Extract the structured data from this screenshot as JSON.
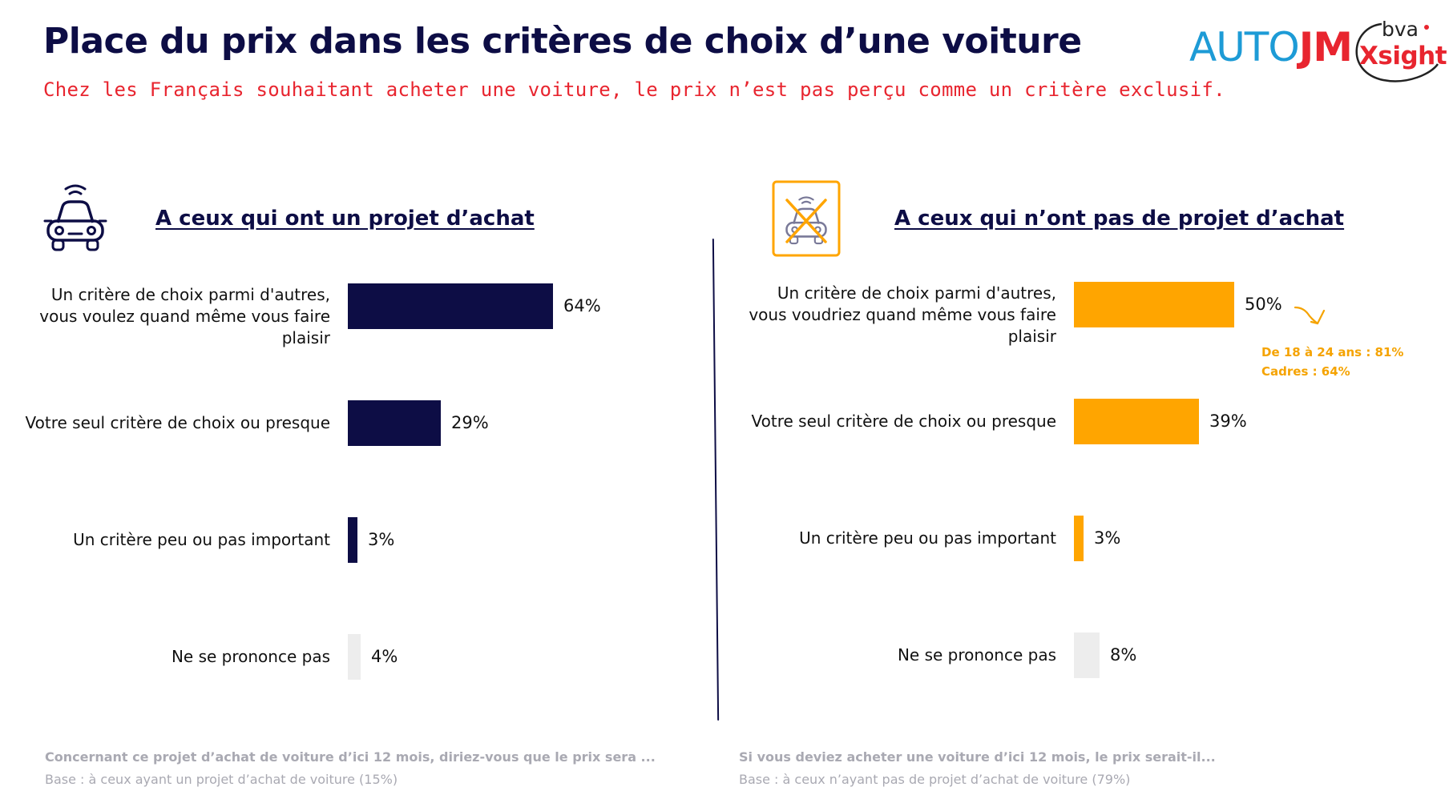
{
  "header": {
    "title": "Place du prix dans les critères de choix d’une voiture",
    "subtitle": "Chez les Français souhaitant acheter une voiture, le prix n’est pas perçu comme un critère exclusif."
  },
  "logos": {
    "autojm_a": "AUTO",
    "autojm_b": "JM",
    "bva": "bva",
    "xsight": "Xsight"
  },
  "colors": {
    "navy": "#0d0d45",
    "orange": "#ffa500",
    "grey_bar": "#ededed",
    "red": "#e8252f"
  },
  "chart_data": [
    {
      "type": "bar",
      "orientation": "horizontal",
      "panel_title": "A ceux qui ont un projet d’achat",
      "icon": "car-icon",
      "categories": [
        "Un critère de choix parmi d'autres, vous voulez quand même vous faire plaisir",
        "Votre seul critère de choix ou presque",
        "Un critère peu ou pas important",
        "Ne se prononce pas"
      ],
      "values": [
        64,
        29,
        3,
        4
      ],
      "value_labels": [
        "64%",
        "29%",
        "3%",
        "4%"
      ],
      "xlim": [
        0,
        100
      ],
      "question": "Concernant ce projet d’achat de voiture d’ici 12 mois, diriez-vous que le prix sera ...",
      "base": "Base : à ceux ayant un projet d’achat de voiture (15%)"
    },
    {
      "type": "bar",
      "orientation": "horizontal",
      "panel_title": "A ceux qui n’ont pas de projet d’achat",
      "icon": "crossed-car-icon",
      "categories": [
        "Un critère de choix parmi d'autres, vous voudriez quand même vous faire plaisir",
        "Votre seul critère de choix ou presque",
        "Un critère peu ou pas important",
        "Ne se prononce pas"
      ],
      "values": [
        50,
        39,
        3,
        8
      ],
      "value_labels": [
        "50%",
        "39%",
        "3%",
        "8%"
      ],
      "xlim": [
        0,
        100
      ],
      "annotation": [
        "De 18 à 24 ans : 81%",
        "Cadres : 64%"
      ],
      "question": "Si vous deviez acheter une voiture d’ici 12 mois, le prix serait-il...",
      "base": "Base : à ceux n’ayant pas de projet d’achat de voiture (79%)"
    }
  ]
}
